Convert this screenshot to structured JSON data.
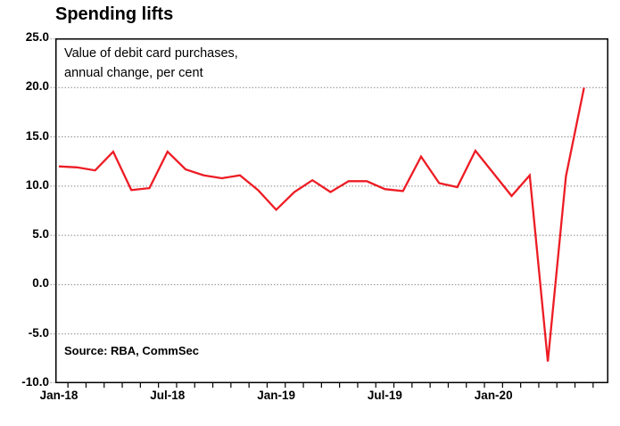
{
  "page": {
    "title": "Spending lifts"
  },
  "annotation": {
    "line1": "Value of debit card purchases,",
    "line2": "annual change, per cent"
  },
  "source": {
    "text": "Source: RBA, CommSec"
  },
  "colors": {
    "line": "#ed1c24",
    "grid": "#8a8a8a",
    "axis": "#000000",
    "background": "#ffffff"
  },
  "chart_data": {
    "type": "line",
    "title": "Spending lifts",
    "subtitle": "Value of debit card purchases, annual change, per cent",
    "source": "Source: RBA, CommSec",
    "series_name": "Value of debit card purchases, annual change, per cent",
    "x": [
      "Jan-18",
      "Feb-18",
      "Mar-18",
      "Apr-18",
      "May-18",
      "Jun-18",
      "Jul-18",
      "Aug-18",
      "Sep-18",
      "Oct-18",
      "Nov-18",
      "Dec-18",
      "Jan-19",
      "Feb-19",
      "Mar-19",
      "Apr-19",
      "May-19",
      "Jun-19",
      "Jul-19",
      "Aug-19",
      "Sep-19",
      "Oct-19",
      "Nov-19",
      "Dec-19",
      "Jan-20",
      "Feb-20",
      "Mar-20",
      "Apr-20",
      "May-20",
      "Jun-20"
    ],
    "values": [
      12.0,
      11.9,
      11.6,
      13.5,
      9.6,
      9.8,
      13.5,
      11.7,
      11.1,
      10.8,
      11.1,
      9.6,
      7.6,
      9.4,
      10.6,
      9.4,
      10.5,
      10.5,
      9.7,
      9.5,
      13.0,
      10.3,
      9.9,
      13.6,
      11.3,
      9.0,
      11.1,
      -7.8,
      11.0,
      20.0
    ],
    "x_tick_labels": [
      "Jan-18",
      "Jul-18",
      "Jan-19",
      "Jul-19",
      "Jan-20"
    ],
    "x_tick_label_indices": [
      0,
      6,
      12,
      18,
      24
    ],
    "y_ticks": [
      25,
      20,
      15,
      10,
      5,
      0,
      -5,
      -10
    ],
    "y_tick_labels": [
      "25.0",
      "20.0",
      "15.0",
      "10.0",
      "5.0",
      "0.0",
      "-5.0",
      "-10.0"
    ],
    "ylim": [
      -10,
      25
    ],
    "grid": "horizontal-dotted",
    "legend": "none",
    "line_color": "#ed1c24"
  }
}
